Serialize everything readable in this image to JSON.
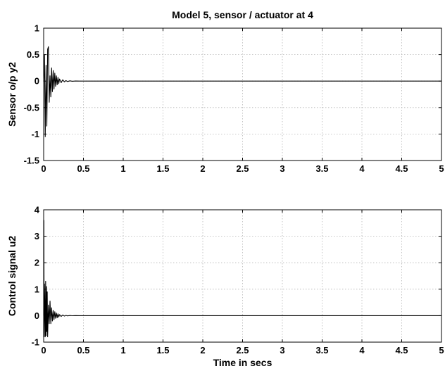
{
  "chart_data": [
    {
      "type": "line",
      "title": "Model 5, sensor / actuator at 4",
      "xlabel": "",
      "ylabel": "Sensor o/p y2",
      "xlim": [
        0,
        5
      ],
      "ylim": [
        -1.5,
        1
      ],
      "x_ticks": [
        "0",
        "0.5",
        "1",
        "1.5",
        "2",
        "2.5",
        "3",
        "3.5",
        "4",
        "4.5",
        "5"
      ],
      "y_ticks": [
        "-1.5",
        "-1",
        "-0.5",
        "0",
        "0.5",
        "1"
      ],
      "grid": true,
      "series": [
        {
          "x": [
            0,
            0.005,
            0.01,
            0.02,
            0.03,
            0.04,
            0.05,
            0.06,
            0.07,
            0.08,
            0.09,
            0.1,
            0.11,
            0.12,
            0.13,
            0.14,
            0.15,
            0.16,
            0.17,
            0.18,
            0.19,
            0.2,
            0.22,
            0.24,
            0.26,
            0.28,
            0.3,
            0.33,
            0.36,
            0.4,
            0.45,
            0.5,
            1.0,
            1.5,
            2.0,
            2.5,
            3.0,
            3.5,
            4.0,
            4.5,
            5.0
          ],
          "values": [
            0,
            0.2,
            0.5,
            -1.05,
            0.3,
            -0.85,
            0.6,
            0.65,
            -0.4,
            0.1,
            -0.3,
            0.25,
            -0.2,
            0.2,
            -0.15,
            0.15,
            -0.1,
            0.1,
            -0.07,
            0.07,
            -0.05,
            0.04,
            -0.03,
            0.025,
            -0.015,
            0.01,
            -0.008,
            0.005,
            -0.003,
            0.002,
            0,
            0,
            0,
            0,
            0,
            0,
            0,
            0,
            0,
            0,
            0
          ]
        }
      ]
    },
    {
      "type": "line",
      "title": "",
      "xlabel": "Time in secs",
      "ylabel": "Control signal u2",
      "xlim": [
        0,
        5
      ],
      "ylim": [
        -1,
        4
      ],
      "x_ticks": [
        "0",
        "0.5",
        "1",
        "1.5",
        "2",
        "2.5",
        "3",
        "3.5",
        "4",
        "4.5",
        "5"
      ],
      "y_ticks": [
        "-1",
        "0",
        "1",
        "2",
        "3",
        "4"
      ],
      "grid": true,
      "series": [
        {
          "x": [
            0,
            0.003,
            0.006,
            0.01,
            0.015,
            0.02,
            0.025,
            0.03,
            0.035,
            0.04,
            0.045,
            0.05,
            0.06,
            0.07,
            0.08,
            0.09,
            0.1,
            0.11,
            0.12,
            0.13,
            0.14,
            0.15,
            0.16,
            0.17,
            0.18,
            0.19,
            0.2,
            0.22,
            0.24,
            0.26,
            0.28,
            0.3,
            0.33,
            0.36,
            0.4,
            0.45,
            0.5,
            1.0,
            1.5,
            2.0,
            2.5,
            3.0,
            3.5,
            4.0,
            4.5,
            5.0
          ],
          "values": [
            0,
            3.6,
            -0.8,
            1.2,
            0.3,
            -0.8,
            1.3,
            -0.75,
            1.1,
            -0.6,
            0.9,
            -0.8,
            0.4,
            -0.3,
            0.55,
            -0.3,
            0.3,
            -0.2,
            0.2,
            -0.15,
            0.15,
            -0.1,
            0.1,
            -0.08,
            0.07,
            -0.05,
            0.04,
            -0.03,
            0.025,
            -0.015,
            0.01,
            -0.008,
            0.005,
            -0.003,
            0.002,
            0,
            0,
            0,
            0,
            0,
            0,
            0,
            0,
            0,
            0,
            0
          ]
        }
      ]
    }
  ]
}
